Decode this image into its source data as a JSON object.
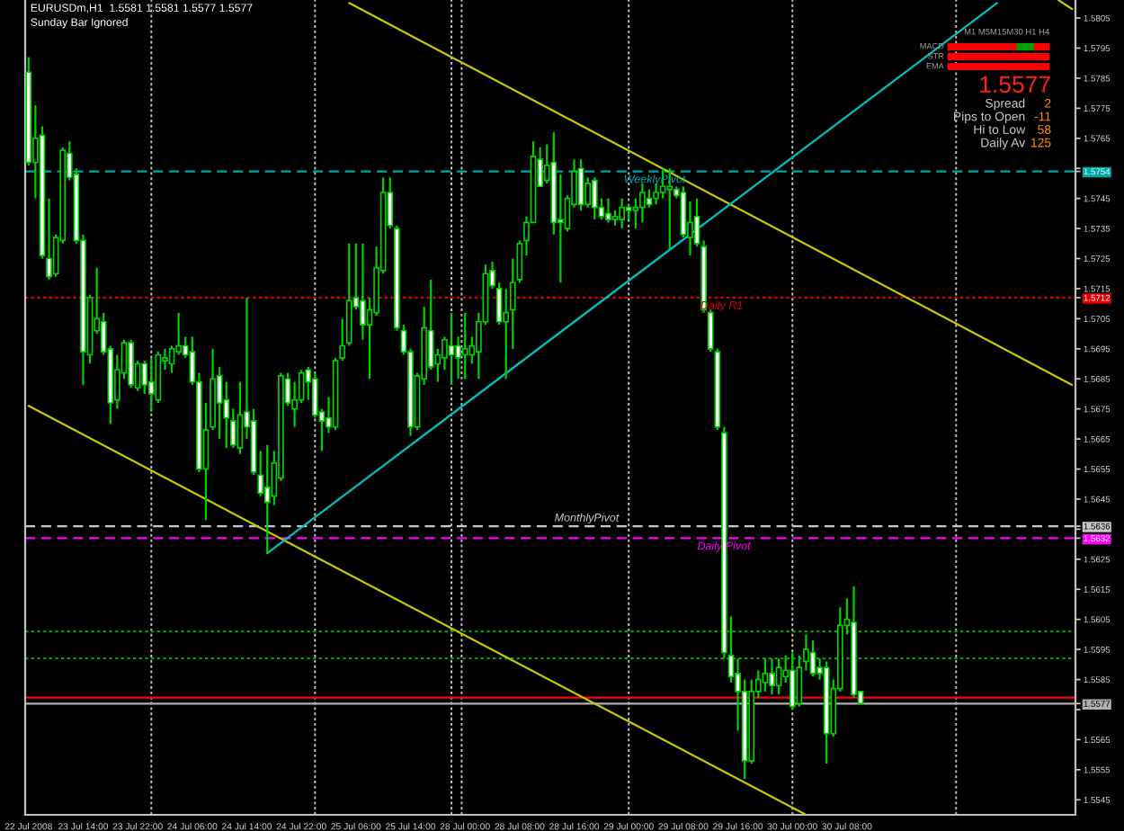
{
  "chart_data": {
    "type": "candlestick",
    "title": "EURUSDm,H1  1.5581 1.5581 1.5577 1.5577",
    "subtitle": "Sunday Bar Ignored",
    "categories": [
      "22 Jul 2008",
      null,
      null,
      null,
      null,
      null,
      null,
      null,
      "23 Jul 14:00",
      null,
      null,
      null,
      null,
      null,
      null,
      null,
      "23 Jul 22:00",
      null,
      null,
      null,
      null,
      null,
      null,
      null,
      "24 Jul 06:00",
      null,
      null,
      null,
      null,
      null,
      null,
      null,
      "24 Jul 14:00",
      null,
      null,
      null,
      null,
      null,
      null,
      null,
      "24 Jul 22:00",
      null,
      null,
      null,
      null,
      null,
      null,
      null,
      "25 Jul 06:00",
      null,
      null,
      null,
      null,
      null,
      null,
      null,
      "25 Jul 14:00",
      null,
      null,
      null,
      null,
      null,
      null,
      null,
      "28 Jul 00:00",
      null,
      null,
      null,
      null,
      null,
      null,
      null,
      "28 Jul 08:00",
      null,
      null,
      null,
      null,
      null,
      null,
      null,
      "28 Jul 16:00",
      null,
      null,
      null,
      null,
      null,
      null,
      null,
      "29 Jul 00:00",
      null,
      null,
      null,
      null,
      null,
      null,
      null,
      "29 Jul 08:00",
      null,
      null,
      null,
      null,
      null,
      null,
      null,
      "29 Jul 16:00",
      null,
      null,
      null,
      null,
      null,
      null,
      null,
      "30 Jul 00:00",
      null,
      null,
      null,
      null,
      null,
      null,
      null,
      "30 Jul 08:00",
      null,
      null,
      null,
      null,
      null,
      null,
      null,
      null,
      null,
      null,
      null,
      null,
      null,
      null,
      null,
      null,
      null,
      null,
      null,
      null,
      null,
      null,
      null,
      null,
      null,
      null,
      null,
      null,
      null,
      null,
      null,
      null,
      null
    ],
    "ohlc": [
      [
        1.5787,
        1.5792,
        1.5756,
        1.5757
      ],
      [
        1.5757,
        1.5776,
        1.5745,
        1.5765
      ],
      [
        1.5766,
        1.5769,
        1.5725,
        1.5726
      ],
      [
        1.5725,
        1.5745,
        1.5718,
        1.5719
      ],
      [
        1.572,
        1.5733,
        1.5719,
        1.5732
      ],
      [
        1.5731,
        1.5762,
        1.573,
        1.5761
      ],
      [
        1.576,
        1.5764,
        1.5751,
        1.5752
      ],
      [
        1.5753,
        1.5755,
        1.573,
        1.5731
      ],
      [
        1.5731,
        1.5733,
        1.5683,
        1.5694
      ],
      [
        1.5693,
        1.5713,
        1.569,
        1.5712
      ],
      [
        1.5701,
        1.5722,
        1.57,
        1.5705
      ],
      [
        1.5704,
        1.5707,
        1.5693,
        1.5694
      ],
      [
        1.5695,
        1.5696,
        1.567,
        1.5677
      ],
      [
        1.5678,
        1.5693,
        1.5675,
        1.5688
      ],
      [
        1.5687,
        1.5698,
        1.5685,
        1.5697
      ],
      [
        1.5697,
        1.5698,
        1.5682,
        1.5683
      ],
      [
        1.5682,
        1.5691,
        1.5681,
        1.569
      ],
      [
        1.569,
        1.5691,
        1.568,
        1.5683
      ],
      [
        1.5684,
        1.5692,
        1.5674,
        1.568
      ],
      [
        1.5678,
        1.5694,
        1.5677,
        1.5693
      ],
      [
        1.5691,
        1.5695,
        1.5688,
        1.5692
      ],
      [
        1.569,
        1.5696,
        1.5687,
        1.5695
      ],
      [
        1.5694,
        1.5707,
        1.5693,
        1.5696
      ],
      [
        1.5696,
        1.5699,
        1.5692,
        1.5693
      ],
      [
        1.5694,
        1.5699,
        1.5683,
        1.5684
      ],
      [
        1.5684,
        1.5687,
        1.5654,
        1.5655
      ],
      [
        1.5655,
        1.5677,
        1.5638,
        1.5668
      ],
      [
        1.5669,
        1.5695,
        1.5668,
        1.5685
      ],
      [
        1.5686,
        1.5689,
        1.5665,
        1.5677
      ],
      [
        1.5678,
        1.5684,
        1.5662,
        1.5672
      ],
      [
        1.5671,
        1.5675,
        1.5662,
        1.5663
      ],
      [
        1.5662,
        1.5684,
        1.566,
        1.5673
      ],
      [
        1.5674,
        1.5712,
        1.5665,
        1.5669
      ],
      [
        1.5671,
        1.5675,
        1.5653,
        1.5654
      ],
      [
        1.5653,
        1.5661,
        1.5646,
        1.5647
      ],
      [
        1.5649,
        1.5663,
        1.5627,
        1.5644
      ],
      [
        1.5646,
        1.5661,
        1.5643,
        1.5657
      ],
      [
        1.5652,
        1.5687,
        1.5651,
        1.5686
      ],
      [
        1.5685,
        1.5687,
        1.5676,
        1.5677
      ],
      [
        1.5675,
        1.5684,
        1.5669,
        1.5678
      ],
      [
        1.5678,
        1.5688,
        1.5677,
        1.5687
      ],
      [
        1.5688,
        1.5689,
        1.5678,
        1.5684
      ],
      [
        1.5685,
        1.5687,
        1.5672,
        1.5673
      ],
      [
        1.5674,
        1.5675,
        1.5661,
        1.5671
      ],
      [
        1.5672,
        1.5679,
        1.5667,
        1.5669
      ],
      [
        1.5669,
        1.5692,
        1.5668,
        1.5691
      ],
      [
        1.5692,
        1.5705,
        1.5691,
        1.5696
      ],
      [
        1.5697,
        1.573,
        1.5696,
        1.5711
      ],
      [
        1.5712,
        1.573,
        1.5708,
        1.5709
      ],
      [
        1.5711,
        1.573,
        1.5698,
        1.5703
      ],
      [
        1.5703,
        1.5712,
        1.5685,
        1.5708
      ],
      [
        1.5707,
        1.5729,
        1.5706,
        1.5722
      ],
      [
        1.5721,
        1.5752,
        1.572,
        1.5747
      ],
      [
        1.5747,
        1.5752,
        1.5735,
        1.5736
      ],
      [
        1.5735,
        1.5736,
        1.5701,
        1.5702
      ],
      [
        1.5701,
        1.5703,
        1.5693,
        1.5694
      ],
      [
        1.5694,
        1.5695,
        1.5666,
        1.5669
      ],
      [
        1.5669,
        1.5687,
        1.5668,
        1.5686
      ],
      [
        1.5685,
        1.5709,
        1.5683,
        1.5702
      ],
      [
        1.5701,
        1.5718,
        1.5688,
        1.5689
      ],
      [
        1.569,
        1.5695,
        1.5684,
        1.5693
      ],
      [
        1.5692,
        1.5699,
        1.5688,
        1.5698
      ],
      [
        1.5696,
        1.5707,
        1.5683,
        1.5693
      ],
      [
        1.5696,
        1.5699,
        1.5685,
        1.5692
      ],
      [
        1.5693,
        1.5707,
        1.5685,
        1.5695
      ],
      [
        1.5693,
        1.5699,
        1.569,
        1.5696
      ],
      [
        1.5694,
        1.5707,
        1.5685,
        1.5704
      ],
      [
        1.5704,
        1.5723,
        1.5703,
        1.572
      ],
      [
        1.5721,
        1.5724,
        1.5715,
        1.5716
      ],
      [
        1.5715,
        1.5717,
        1.5703,
        1.5704
      ],
      [
        1.5704,
        1.5715,
        1.5685,
        1.5707
      ],
      [
        1.5708,
        1.5725,
        1.5695,
        1.5717
      ],
      [
        1.5718,
        1.5731,
        1.5717,
        1.573
      ],
      [
        1.5731,
        1.5739,
        1.5726,
        1.5737
      ],
      [
        1.5737,
        1.5764,
        1.5737,
        1.5759
      ],
      [
        1.5758,
        1.5762,
        1.5749,
        1.5749
      ],
      [
        1.5751,
        1.5763,
        1.575,
        1.5756
      ],
      [
        1.5757,
        1.5767,
        1.5733,
        1.5737
      ],
      [
        1.5738,
        1.5753,
        1.5717,
        1.5737
      ],
      [
        1.5735,
        1.5746,
        1.5734,
        1.5745
      ],
      [
        1.5743,
        1.5758,
        1.5742,
        1.5754
      ],
      [
        1.5755,
        1.5758,
        1.5741,
        1.5743
      ],
      [
        1.5743,
        1.5752,
        1.5742,
        1.575
      ],
      [
        1.5751,
        1.5752,
        1.5738,
        1.5742
      ],
      [
        1.5742,
        1.5745,
        1.5738,
        1.5739
      ],
      [
        1.574,
        1.5745,
        1.5737,
        1.5738
      ],
      [
        1.5738,
        1.5741,
        1.5736,
        1.5739
      ],
      [
        1.5738,
        1.5745,
        1.5735,
        1.5742
      ],
      [
        1.5742,
        1.5743,
        1.5738,
        1.5741
      ],
      [
        1.5741,
        1.5745,
        1.5735,
        1.5742
      ],
      [
        1.5742,
        1.575,
        1.5737,
        1.5747
      ],
      [
        1.5745,
        1.5748,
        1.5742,
        1.5743
      ],
      [
        1.5745,
        1.575,
        1.5743,
        1.5747
      ],
      [
        1.5747,
        1.5755,
        1.5745,
        1.5749
      ],
      [
        1.5748,
        1.5755,
        1.5728,
        1.5749
      ],
      [
        1.5748,
        1.5749,
        1.5745,
        1.5746
      ],
      [
        1.5747,
        1.5749,
        1.5732,
        1.5733
      ],
      [
        1.5732,
        1.5744,
        1.5726,
        1.5737
      ],
      [
        1.5739,
        1.5745,
        1.5729,
        1.573
      ],
      [
        1.5729,
        1.5731,
        1.5707,
        1.5708
      ],
      [
        1.5707,
        1.5708,
        1.5694,
        1.5695
      ],
      [
        1.5694,
        1.5695,
        1.5668,
        1.5669
      ],
      [
        1.5667,
        1.5669,
        1.5592,
        1.5594
      ],
      [
        1.5593,
        1.5606,
        1.5584,
        1.5586
      ],
      [
        1.5587,
        1.5592,
        1.5568,
        1.5581
      ],
      [
        1.5581,
        1.5585,
        1.5552,
        1.5558
      ],
      [
        1.5558,
        1.5585,
        1.5557,
        1.5581
      ],
      [
        1.5581,
        1.5588,
        1.5579,
        1.5585
      ],
      [
        1.5584,
        1.5592,
        1.5581,
        1.5587
      ],
      [
        1.5587,
        1.5592,
        1.558,
        1.5583
      ],
      [
        1.5583,
        1.5592,
        1.558,
        1.5589
      ],
      [
        1.5586,
        1.5593,
        1.5584,
        1.5588
      ],
      [
        1.5588,
        1.5594,
        1.5575,
        1.5576
      ],
      [
        1.5577,
        1.5593,
        1.5576,
        1.5589
      ],
      [
        1.5591,
        1.56,
        1.5588,
        1.5595
      ],
      [
        1.5594,
        1.5598,
        1.5586,
        1.5587
      ],
      [
        1.5589,
        1.5592,
        1.5585,
        1.5587
      ],
      [
        1.5589,
        1.5591,
        1.5557,
        1.5567
      ],
      [
        1.5567,
        1.5585,
        1.5566,
        1.5582
      ],
      [
        1.5582,
        1.5609,
        1.5581,
        1.5603
      ],
      [
        1.5603,
        1.5612,
        1.56,
        1.5605
      ],
      [
        1.5604,
        1.5616,
        1.5579,
        1.558
      ],
      [
        1.5581,
        1.5581,
        1.5577,
        1.5577
      ],
      null,
      null,
      null,
      null,
      null,
      null,
      null,
      null,
      null,
      null,
      null,
      null,
      null,
      null,
      null,
      null,
      null,
      null,
      null,
      null,
      null,
      null,
      null,
      null,
      null,
      null,
      null,
      null,
      null,
      null,
      null
    ],
    "ylim": [
      1.554,
      1.5811
    ],
    "yticks": [
      1.5545,
      1.5555,
      1.5565,
      {
        "value": 1.5575,
        "label": null
      },
      1.5577,
      1.5585,
      1.5595,
      1.5605,
      1.5615,
      1.5625,
      1.5632,
      {
        "value": 1.5635,
        "label": null
      },
      1.5636,
      1.5645,
      1.5655,
      1.5665,
      1.5675,
      1.5685,
      1.5695,
      1.5705,
      1.5712,
      1.5715,
      1.5725,
      1.5735,
      1.5745,
      1.5754,
      {
        "value": 1.5755,
        "label": null
      },
      1.5765,
      1.5775,
      1.5785,
      1.5795,
      1.5805
    ],
    "series": [
      {
        "type": "line",
        "color": "#c8c800",
        "values": [
          null,
          null,
          null,
          null,
          null,
          null,
          null,
          null,
          null,
          null,
          null,
          null,
          null,
          null,
          null,
          null,
          null,
          null,
          null,
          null,
          null,
          null,
          null,
          null,
          null,
          null,
          null,
          null,
          null,
          null,
          null,
          null,
          null,
          null,
          null,
          null,
          null,
          null,
          null,
          null,
          null,
          null,
          null,
          null,
          null,
          null,
          null,
          1.581,
          null,
          null,
          null,
          null,
          null,
          null,
          null,
          null,
          null,
          null,
          null,
          null,
          null,
          null,
          null,
          null,
          null,
          null,
          null,
          null,
          null,
          null,
          null,
          null,
          null,
          null,
          null,
          null,
          null,
          null,
          null,
          null,
          null,
          null,
          null,
          null,
          null,
          null,
          null,
          null,
          null,
          null,
          null,
          null,
          null,
          null,
          null,
          null,
          null,
          null,
          null,
          null,
          null,
          null,
          null,
          null,
          null,
          null,
          null,
          null,
          null,
          null,
          null,
          null,
          null,
          null,
          null,
          null,
          null,
          null,
          null,
          null,
          null,
          null,
          null,
          null,
          null,
          null,
          null,
          null,
          null,
          null,
          null,
          null,
          null,
          null,
          null,
          null,
          null,
          null,
          null,
          null,
          null,
          null,
          null,
          null,
          null,
          null,
          null,
          null,
          null,
          null,
          null,
          null,
          null,
          1.5683
        ]
      },
      {
        "type": "line",
        "color": "#c8c800",
        "values": [
          1.5676,
          null,
          null,
          null,
          null,
          null,
          null,
          null,
          null,
          null,
          null,
          null,
          null,
          null,
          null,
          null,
          null,
          null,
          null,
          null,
          null,
          null,
          null,
          null,
          null,
          null,
          null,
          null,
          null,
          null,
          null,
          null,
          null,
          null,
          null,
          null,
          null,
          null,
          null,
          null,
          null,
          null,
          null,
          null,
          null,
          null,
          null,
          null,
          null,
          null,
          null,
          null,
          null,
          null,
          null,
          null,
          null,
          null,
          null,
          null,
          null,
          null,
          null,
          null,
          null,
          null,
          null,
          null,
          null,
          null,
          null,
          null,
          null,
          null,
          null,
          null,
          null,
          null,
          null,
          null,
          null,
          null,
          null,
          null,
          null,
          null,
          null,
          null,
          null,
          null,
          null,
          null,
          null,
          null,
          null,
          null,
          null,
          null,
          null,
          null,
          null,
          null,
          null,
          null,
          null,
          null,
          null,
          null,
          null,
          null,
          null,
          null,
          null,
          null,
          1.554,
          null,
          null,
          null,
          null,
          null,
          null,
          null,
          null,
          null,
          null,
          null,
          null,
          null,
          null,
          null,
          null,
          null,
          null,
          null,
          null,
          null,
          null,
          null,
          null,
          null,
          null,
          null,
          null,
          null,
          null,
          null,
          null,
          null,
          null,
          null,
          null,
          null,
          null,
          null
        ]
      },
      {
        "type": "line",
        "color": "#c8c800",
        "values": [
          null,
          null,
          null,
          null,
          null,
          null,
          null,
          null,
          null,
          null,
          null,
          null,
          null,
          null,
          null,
          null,
          null,
          null,
          null,
          null,
          null,
          null,
          null,
          null,
          null,
          null,
          null,
          null,
          null,
          null,
          null,
          null,
          null,
          null,
          null,
          null,
          null,
          null,
          null,
          null,
          null,
          null,
          null,
          null,
          null,
          null,
          null,
          null,
          null,
          null,
          null,
          null,
          null,
          null,
          null,
          null,
          null,
          null,
          null,
          null,
          null,
          null,
          null,
          null,
          null,
          null,
          null,
          null,
          null,
          null,
          null,
          null,
          null,
          null,
          null,
          null,
          null,
          null,
          null,
          null,
          null,
          null,
          null,
          null,
          null,
          null,
          null,
          null,
          null,
          null,
          null,
          null,
          null,
          null,
          null,
          null,
          null,
          null,
          null,
          null,
          null,
          null,
          null,
          null,
          null,
          null,
          null,
          null,
          null,
          null,
          null,
          null,
          null,
          null,
          null,
          null,
          null,
          null,
          null,
          null,
          null,
          null,
          null,
          null,
          null,
          null,
          null,
          null,
          null,
          null,
          null,
          null,
          null,
          null,
          null,
          null,
          null,
          null,
          null,
          null,
          null,
          null,
          null,
          null,
          null,
          null,
          null,
          null,
          null,
          null,
          null,
          1.5811,
          null,
          1.5808
        ]
      },
      {
        "type": "line",
        "color": "#00c0c0",
        "values": [
          null,
          null,
          null,
          null,
          null,
          null,
          null,
          null,
          null,
          null,
          null,
          null,
          null,
          null,
          null,
          null,
          null,
          null,
          null,
          null,
          null,
          null,
          null,
          null,
          null,
          null,
          null,
          null,
          null,
          null,
          null,
          null,
          null,
          null,
          null,
          1.5627,
          null,
          null,
          null,
          null,
          null,
          null,
          null,
          null,
          null,
          null,
          null,
          null,
          null,
          null,
          null,
          null,
          null,
          null,
          null,
          null,
          null,
          null,
          null,
          null,
          null,
          null,
          null,
          null,
          null,
          null,
          null,
          null,
          null,
          null,
          null,
          null,
          null,
          null,
          null,
          null,
          null,
          null,
          null,
          null,
          null,
          null,
          null,
          null,
          null,
          null,
          null,
          null,
          null,
          null,
          null,
          null,
          null,
          null,
          null,
          null,
          null,
          null,
          null,
          null,
          null,
          null,
          null,
          null,
          null,
          null,
          null,
          null,
          null,
          null,
          null,
          null,
          null,
          null,
          null,
          null,
          null,
          null,
          null,
          null,
          null,
          null,
          null,
          null,
          null,
          null,
          null,
          null,
          null,
          null,
          null,
          null,
          null,
          null,
          null,
          null,
          null,
          null,
          null,
          null,
          null,
          null,
          1.581,
          null,
          null,
          null,
          null,
          null,
          null,
          null,
          null,
          null,
          null,
          null
        ]
      }
    ],
    "ref_lines": [
      {
        "axis": "y",
        "value": 1.5754,
        "label": "WeeklyPivot",
        "color": "#00a8a8",
        "line_style": "dashed"
      },
      {
        "axis": "y",
        "value": 1.5712,
        "label": "Daily R1",
        "color": "#e00000",
        "line_style": "dotted"
      },
      {
        "axis": "y",
        "value": 1.5636,
        "label": "MonthlyPivot",
        "color": "#c8c8c8",
        "line_style": "dashed"
      },
      {
        "axis": "y",
        "value": 1.5632,
        "label": "Daily Pivot",
        "color": "#ff00ff",
        "line_style": "dashed"
      },
      {
        "axis": "y",
        "value": 1.5601,
        "color": "#00a000",
        "line_style": "dotted"
      },
      {
        "axis": "y",
        "value": 1.5592,
        "color": "#00a000",
        "line_style": "dotted"
      },
      {
        "axis": "y",
        "value": 1.5577,
        "color": "#b0b0b0",
        "line_style": "solid"
      },
      {
        "axis": "y",
        "value": 1.5579,
        "color": "#ff0000",
        "line_style": "solid"
      }
    ],
    "annotations": [
      "M1 M5M15M30 H1 H4",
      "MACD",
      "STR",
      "EMA",
      "1.5577",
      "Spread",
      "2",
      "Pips to Open",
      "-11",
      "Hi to Low",
      "58",
      "Daily Av",
      "125"
    ]
  }
}
